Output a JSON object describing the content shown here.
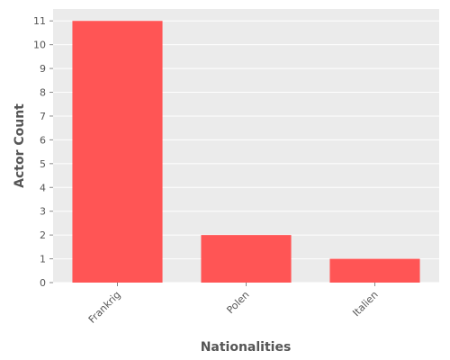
{
  "chart_data": {
    "type": "bar",
    "categories": [
      "Frankrig",
      "Polen",
      "Italien"
    ],
    "values": [
      11,
      2,
      1
    ],
    "title": "",
    "xlabel": "Nationalities",
    "ylabel": "Actor Count",
    "ylim": [
      0,
      11.5
    ],
    "yticks": [
      0,
      1,
      2,
      3,
      4,
      5,
      6,
      7,
      8,
      9,
      10,
      11
    ],
    "grid": true,
    "legend": "none",
    "colors": {
      "bar": "#ff5555",
      "panel": "#ebebeb",
      "grid": "#ffffff",
      "text": "#555555"
    }
  }
}
